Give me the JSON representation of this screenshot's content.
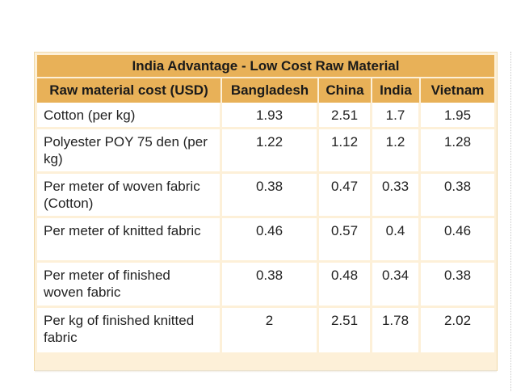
{
  "table": {
    "title": "India Advantage - Low Cost Raw Material",
    "headers": [
      "Raw material cost (USD)",
      "Bangladesh",
      "China",
      "India",
      "Vietnam"
    ],
    "rows": [
      [
        "Cotton (per kg)",
        "1.93",
        "2.51",
        "1.7",
        "1.95"
      ],
      [
        "Polyester POY 75 den (per kg)",
        "1.22",
        "1.12",
        "1.2",
        "1.28"
      ],
      [
        "Per meter of woven fabric (Cotton)",
        "0.38",
        "0.47",
        "0.33",
        "0.38"
      ],
      [
        "Per meter of knitted fabric",
        "0.46",
        "0.57",
        "0.4",
        "0.46"
      ],
      [
        "Per meter of finished woven fabric",
        "0.38",
        "0.48",
        "0.34",
        "0.38"
      ],
      [
        "Per kg of finished knitted fabric",
        "2",
        "2.51",
        "1.78",
        "2.02"
      ]
    ]
  }
}
